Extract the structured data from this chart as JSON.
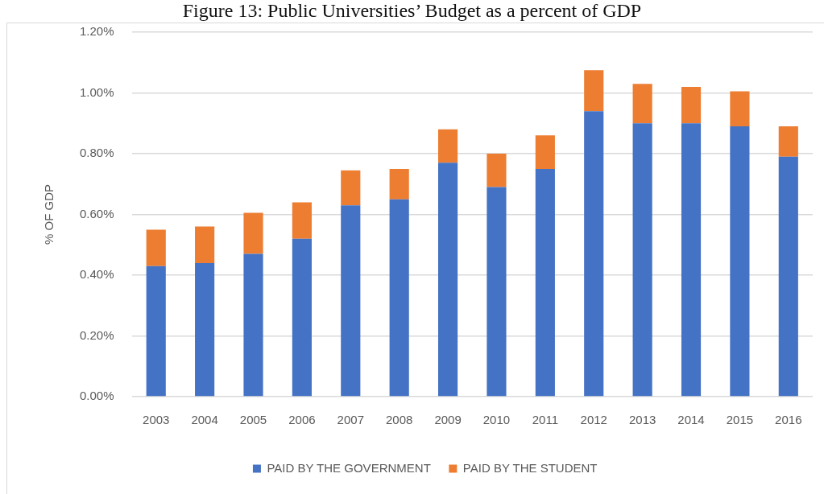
{
  "chart_data": {
    "type": "bar",
    "title": "Figure 13: Public Universities’ Budget as a percent of GDP",
    "ylabel": "% OF GDP",
    "categories": [
      "2003",
      "2004",
      "2005",
      "2006",
      "2007",
      "2008",
      "2009",
      "2010",
      "2011",
      "2012",
      "2013",
      "2014",
      "2015",
      "2016"
    ],
    "series": [
      {
        "name": "PAID BY THE GOVERNMENT",
        "color": "#4472c4",
        "values": [
          0.43,
          0.44,
          0.47,
          0.52,
          0.63,
          0.65,
          0.77,
          0.69,
          0.75,
          0.94,
          0.9,
          0.9,
          0.89,
          0.79
        ]
      },
      {
        "name": "PAID BY THE STUDENT",
        "color": "#ed7d31",
        "values": [
          0.12,
          0.12,
          0.135,
          0.12,
          0.115,
          0.1,
          0.11,
          0.11,
          0.11,
          0.135,
          0.13,
          0.12,
          0.115,
          0.1
        ]
      }
    ],
    "stacked": true,
    "ylim": [
      0,
      1.2
    ],
    "yticks": [
      {
        "value": 0,
        "label": "0.00%"
      },
      {
        "value": 0.2,
        "label": "0.20%"
      },
      {
        "value": 0.4,
        "label": "0.40%"
      },
      {
        "value": 0.6,
        "label": "0.60%"
      },
      {
        "value": 0.8,
        "label": "0.80%"
      },
      {
        "value": 1,
        "label": "1.00%"
      },
      {
        "value": 1.2,
        "label": "1.20%"
      }
    ],
    "grid": "y",
    "legend": "bottom"
  }
}
